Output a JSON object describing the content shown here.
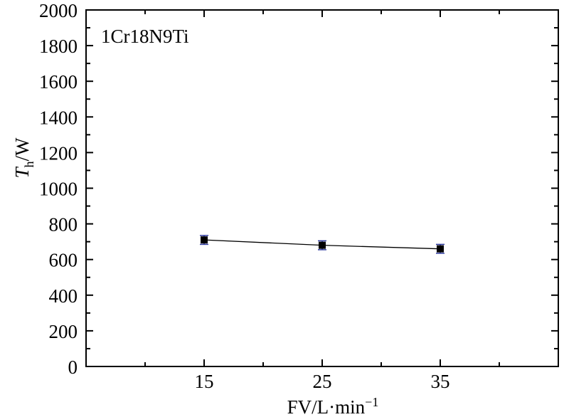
{
  "chart_data": {
    "type": "line",
    "annotation": "1Cr18N9Ti",
    "xlabel": {
      "main": "FV/L·min",
      "sup": "−1"
    },
    "ylabel": {
      "italic": "T",
      "sub": "h",
      "rest": "/W"
    },
    "xlim": [
      5,
      45
    ],
    "ylim": [
      0,
      2000
    ],
    "x_ticks": [
      15,
      25,
      35
    ],
    "x_tick_labels": [
      "15",
      "25",
      "35"
    ],
    "y_ticks": [
      0,
      200,
      400,
      600,
      800,
      1000,
      1200,
      1400,
      1600,
      1800,
      2000
    ],
    "y_tick_labels": [
      "0",
      "200",
      "400",
      "600",
      "800",
      "1000",
      "1200",
      "1400",
      "1600",
      "1800",
      "2000"
    ],
    "grid": false,
    "series": [
      {
        "marker": "square",
        "x": [
          15,
          25,
          35
        ],
        "y": [
          710,
          680,
          660
        ],
        "error": [
          25,
          25,
          25
        ]
      }
    ],
    "colors": {
      "line": "#000000",
      "marker": "#000000",
      "errorbar": "#2e3a9e"
    }
  }
}
